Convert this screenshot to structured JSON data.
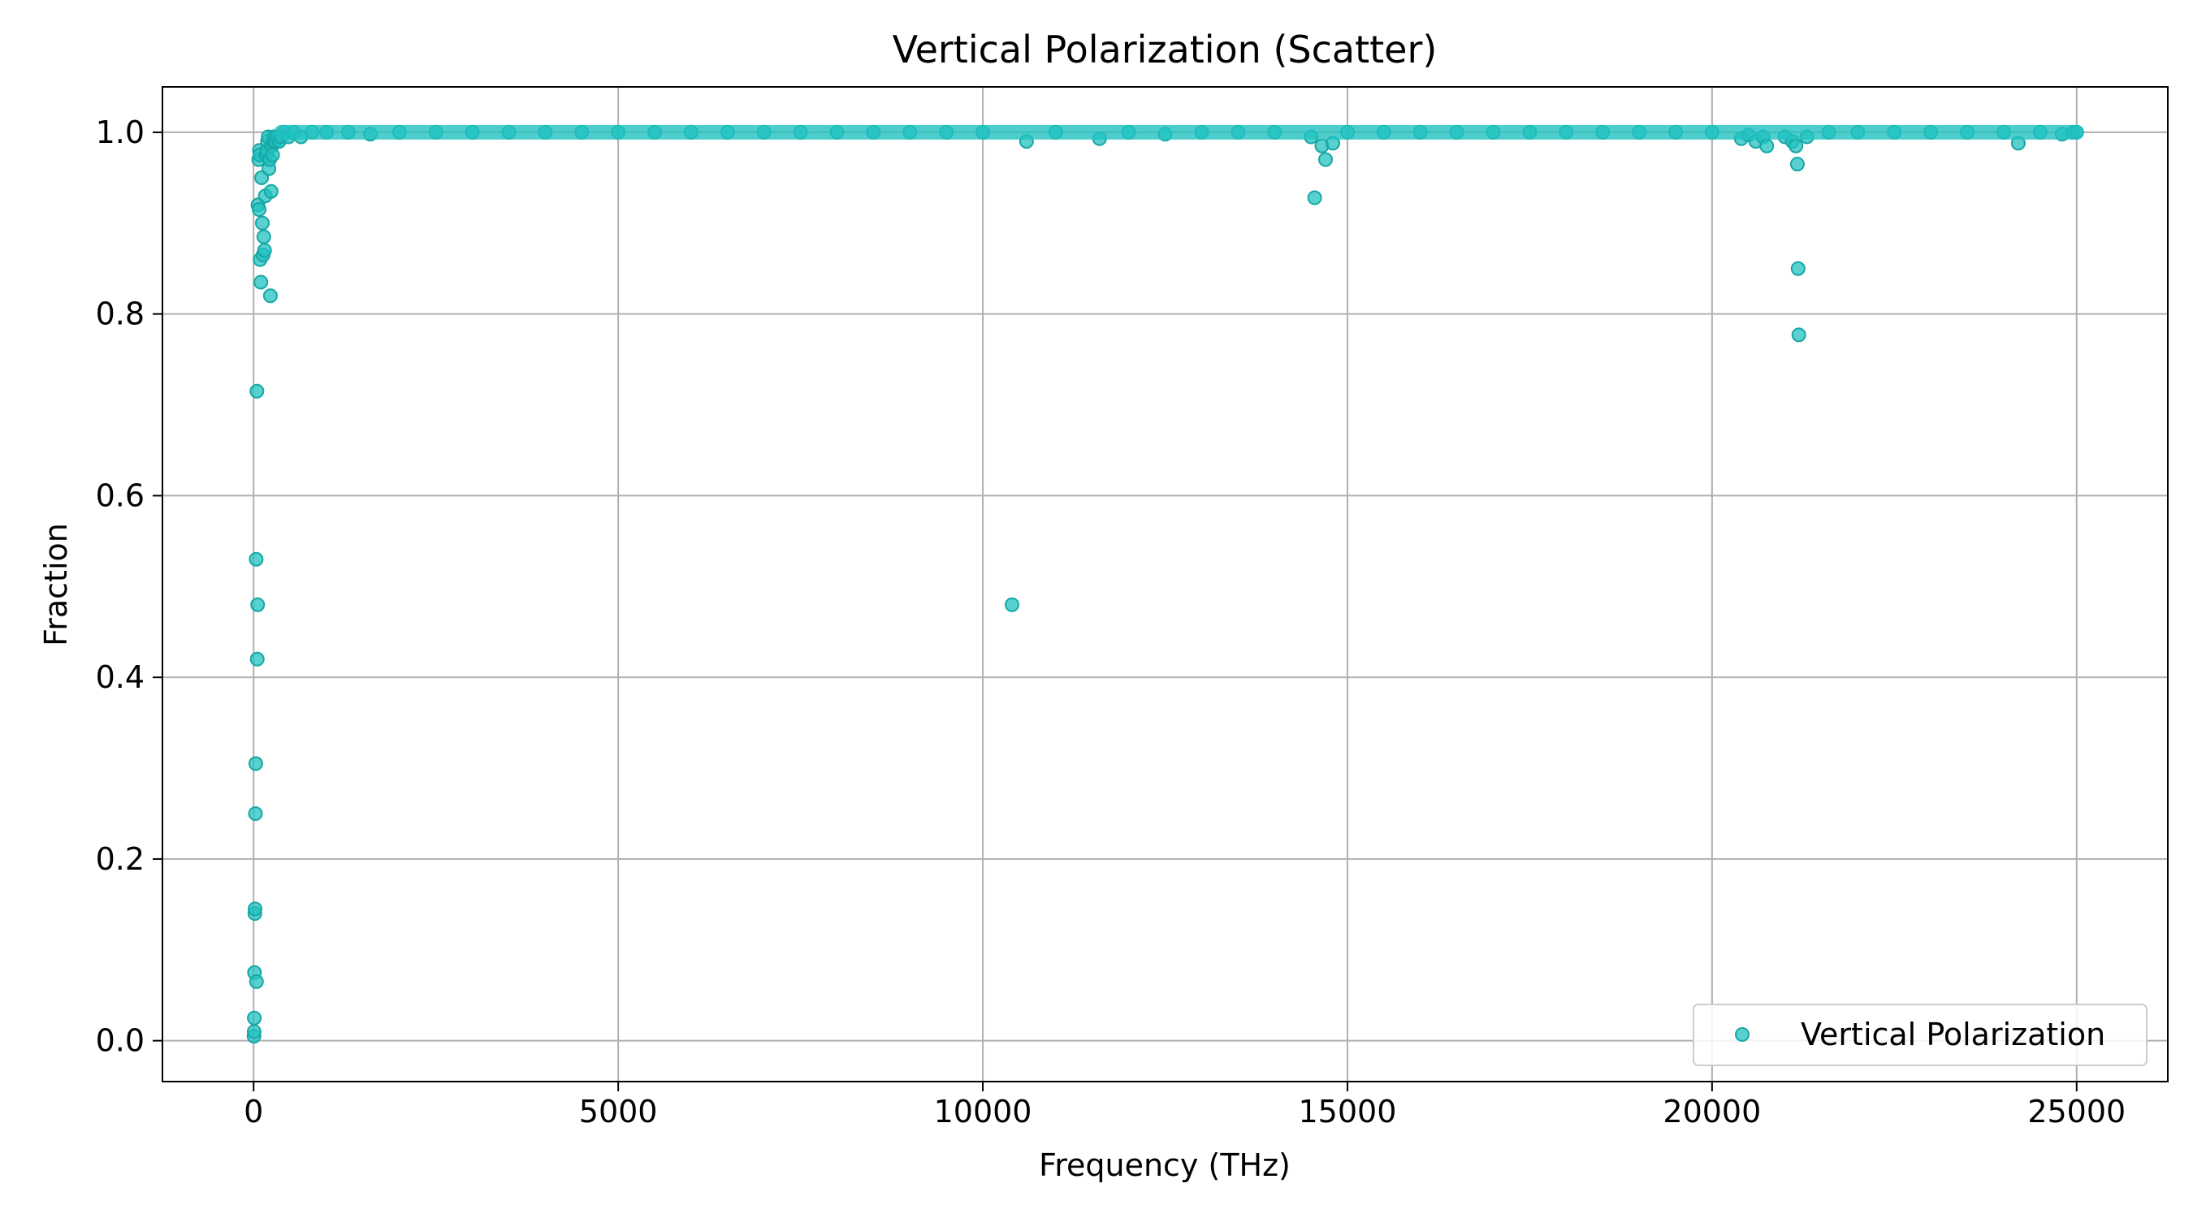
{
  "chart_data": {
    "type": "scatter",
    "title": "Vertical Polarization (Scatter)",
    "xlabel": "Frequency (THz)",
    "ylabel": "Fraction",
    "xlim": [
      -1250,
      26250
    ],
    "ylim": [
      -0.045,
      1.05
    ],
    "xticks": [
      0,
      5000,
      10000,
      15000,
      20000,
      25000
    ],
    "yticks": [
      0.0,
      0.2,
      0.4,
      0.6,
      0.8,
      1.0
    ],
    "xtick_labels": [
      "0",
      "5000",
      "10000",
      "15000",
      "20000",
      "25000"
    ],
    "ytick_labels": [
      "0.0",
      "0.2",
      "0.4",
      "0.6",
      "0.8",
      "1.0"
    ],
    "grid": true,
    "legend_position": "lower-right",
    "marker_color": "#20c2c0",
    "marker_edge_color": "#17a7a5",
    "series": [
      {
        "name": "Vertical Polarization",
        "x": [
          5,
          8,
          10,
          12,
          18,
          20,
          25,
          30,
          35,
          40,
          45,
          50,
          55,
          60,
          70,
          75,
          80,
          85,
          90,
          100,
          110,
          120,
          130,
          140,
          150,
          160,
          170,
          180,
          190,
          200,
          210,
          220,
          230,
          240,
          250,
          260,
          270,
          280,
          300,
          320,
          350,
          380,
          420,
          480,
          550,
          650,
          800,
          1000,
          1300,
          1600,
          2000,
          2500,
          3000,
          3500,
          4000,
          4500,
          5000,
          5500,
          6000,
          6500,
          7000,
          7500,
          8000,
          8500,
          9000,
          9500,
          10000,
          10400,
          10600,
          11000,
          11600,
          12000,
          12500,
          13000,
          13500,
          14000,
          14500,
          14550,
          14650,
          14700,
          14800,
          15000,
          15500,
          16000,
          16500,
          17000,
          17500,
          18000,
          18500,
          19000,
          19500,
          20000,
          20400,
          20500,
          20600,
          20700,
          20750,
          21000,
          21100,
          21150,
          21170,
          21180,
          21190,
          21300,
          21600,
          22000,
          22500,
          23000,
          23500,
          24000,
          24200,
          24500,
          24800,
          24950,
          25000
        ],
        "y": [
          0.005,
          0.01,
          0.025,
          0.075,
          0.14,
          0.145,
          0.25,
          0.305,
          0.53,
          0.065,
          0.715,
          0.42,
          0.48,
          0.92,
          0.97,
          0.915,
          0.98,
          0.975,
          0.86,
          0.835,
          0.95,
          0.9,
          0.865,
          0.885,
          0.87,
          0.93,
          0.975,
          0.98,
          0.99,
          0.995,
          0.96,
          0.97,
          0.82,
          0.935,
          0.985,
          0.975,
          0.99,
          0.995,
          0.99,
          0.995,
          0.99,
          0.995,
          1.0,
          0.995,
          1.0,
          0.995,
          1.0,
          1.0,
          1.0,
          0.998,
          1.0,
          1.0,
          1.0,
          1.0,
          1.0,
          1.0,
          1.0,
          1.0,
          1.0,
          1.0,
          1.0,
          1.0,
          1.0,
          1.0,
          1.0,
          1.0,
          1.0,
          0.48,
          0.99,
          1.0,
          0.993,
          1.0,
          0.998,
          1.0,
          1.0,
          1.0,
          0.995,
          0.928,
          0.985,
          0.97,
          0.988,
          1.0,
          1.0,
          1.0,
          1.0,
          1.0,
          1.0,
          1.0,
          1.0,
          1.0,
          1.0,
          1.0,
          0.993,
          0.997,
          0.99,
          0.995,
          0.985,
          0.995,
          0.99,
          0.985,
          0.965,
          0.85,
          0.777,
          0.995,
          1.0,
          1.0,
          1.0,
          1.0,
          1.0,
          1.0,
          0.988,
          1.0,
          0.998,
          1.0,
          1.0
        ]
      }
    ]
  }
}
